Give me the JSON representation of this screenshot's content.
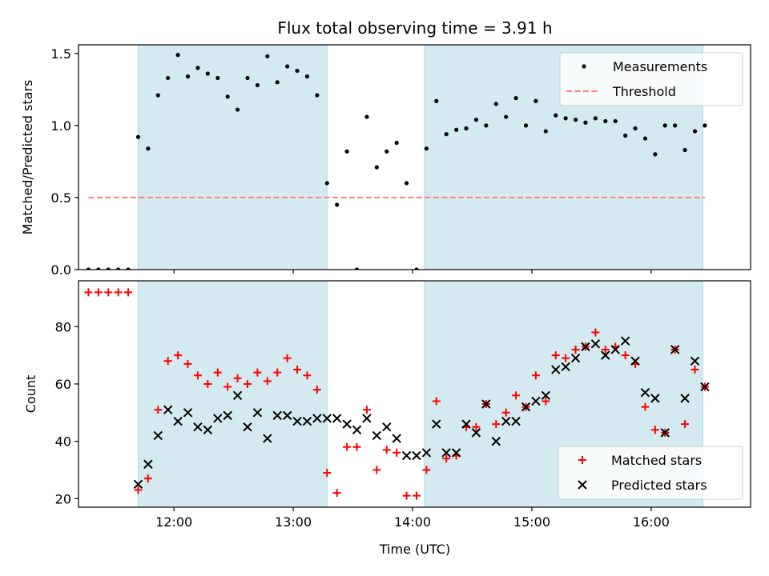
{
  "chart_data": [
    {
      "type": "scatter",
      "title": "Flux total observing time = 3.91 h",
      "xlabel": "",
      "ylabel": "Matched/Predicted stars",
      "xlim": [
        "11:12",
        "16:50"
      ],
      "ylim": [
        0,
        1.56
      ],
      "yticks": [
        0.0,
        0.5,
        1.0,
        1.5
      ],
      "ytick_labels": [
        "0.0",
        "0.5",
        "1.0",
        "1.5"
      ],
      "shaded_intervals": [
        [
          "11:42",
          "13:17"
        ],
        [
          "14:06",
          "16:26"
        ]
      ],
      "shade_color": "#d4eaf0",
      "legend_placement": "top-right",
      "series": [
        {
          "name": "Measurements",
          "marker": "dot",
          "color": "#000000",
          "x": [
            "11:17",
            "11:22",
            "11:27",
            "11:32",
            "11:37",
            "11:42",
            "11:47",
            "11:52",
            "11:57",
            "12:02",
            "12:07",
            "12:12",
            "12:17",
            "12:22",
            "12:27",
            "12:32",
            "12:37",
            "12:42",
            "12:47",
            "12:52",
            "12:57",
            "13:02",
            "13:07",
            "13:12",
            "13:17",
            "13:22",
            "13:27",
            "13:32",
            "13:37",
            "13:42",
            "13:47",
            "13:52",
            "13:57",
            "14:02",
            "14:07",
            "14:12",
            "14:17",
            "14:22",
            "14:27",
            "14:32",
            "14:37",
            "14:42",
            "14:47",
            "14:52",
            "14:57",
            "15:02",
            "15:07",
            "15:12",
            "15:17",
            "15:22",
            "15:27",
            "15:32",
            "15:37",
            "15:42",
            "15:47",
            "15:52",
            "15:57",
            "16:02",
            "16:07",
            "16:12",
            "16:17",
            "16:22",
            "16:27"
          ],
          "y": [
            0,
            0,
            0,
            0,
            0,
            0.92,
            0.84,
            1.21,
            1.33,
            1.49,
            1.34,
            1.4,
            1.36,
            1.33,
            1.2,
            1.11,
            1.33,
            1.28,
            1.48,
            1.3,
            1.41,
            1.38,
            1.34,
            1.21,
            0.6,
            0.45,
            0.82,
            0,
            1.06,
            0.71,
            0.82,
            0.88,
            0.6,
            0,
            0.84,
            1.17,
            0.94,
            0.97,
            0.98,
            1.04,
            1.0,
            1.15,
            1.06,
            1.19,
            1.0,
            1.17,
            0.96,
            1.07,
            1.05,
            1.04,
            1.02,
            1.05,
            1.03,
            1.03,
            0.93,
            0.98,
            0.91,
            0.8,
            1.0,
            1.0,
            0.83,
            0.96,
            1.0
          ]
        },
        {
          "name": "Threshold",
          "style": "dashed",
          "color": "#ff7f7f",
          "x": [
            "11:17",
            "16:27"
          ],
          "y": [
            0.5,
            0.5
          ]
        }
      ]
    },
    {
      "type": "scatter",
      "title": "",
      "xlabel": "Time (UTC)",
      "ylabel": "Count",
      "xlim": [
        "11:12",
        "16:50"
      ],
      "ylim": [
        17,
        96
      ],
      "yticks": [
        20,
        40,
        60,
        80
      ],
      "ytick_labels": [
        "20",
        "40",
        "60",
        "80"
      ],
      "xticks": [
        "12:00",
        "13:00",
        "14:00",
        "15:00",
        "16:00"
      ],
      "xtick_labels": [
        "12:00",
        "13:00",
        "14:00",
        "15:00",
        "16:00"
      ],
      "shaded_intervals": [
        [
          "11:42",
          "13:17"
        ],
        [
          "14:06",
          "16:26"
        ]
      ],
      "shade_color": "#d4eaf0",
      "legend_placement": "bottom-right",
      "series": [
        {
          "name": "Matched stars",
          "marker": "plus",
          "color": "#ff0000",
          "x": [
            "11:17",
            "11:22",
            "11:27",
            "11:32",
            "11:37",
            "11:42",
            "11:47",
            "11:52",
            "11:57",
            "12:02",
            "12:07",
            "12:12",
            "12:17",
            "12:22",
            "12:27",
            "12:32",
            "12:37",
            "12:42",
            "12:47",
            "12:52",
            "12:57",
            "13:02",
            "13:07",
            "13:12",
            "13:17",
            "13:22",
            "13:27",
            "13:32",
            "13:37",
            "13:42",
            "13:47",
            "13:52",
            "13:57",
            "14:02",
            "14:07",
            "14:12",
            "14:17",
            "14:22",
            "14:27",
            "14:32",
            "14:37",
            "14:42",
            "14:47",
            "14:52",
            "14:57",
            "15:02",
            "15:07",
            "15:12",
            "15:17",
            "15:22",
            "15:27",
            "15:32",
            "15:37",
            "15:42",
            "15:47",
            "15:52",
            "15:57",
            "16:02",
            "16:07",
            "16:12",
            "16:17",
            "16:22",
            "16:27"
          ],
          "y": [
            92,
            92,
            92,
            92,
            92,
            23,
            27,
            51,
            68,
            70,
            67,
            63,
            60,
            64,
            59,
            62,
            60,
            64,
            61,
            64,
            69,
            65,
            63,
            58,
            29,
            22,
            38,
            38,
            51,
            30,
            37,
            36,
            21,
            21,
            30,
            54,
            34,
            35,
            45,
            45,
            53,
            46,
            50,
            56,
            52,
            63,
            54,
            70,
            69,
            72,
            73,
            78,
            72,
            73,
            70,
            67,
            52,
            44,
            43,
            72,
            46,
            65,
            59
          ]
        },
        {
          "name": "Predicted stars",
          "marker": "x",
          "color": "#000000",
          "x": [
            "11:42",
            "11:47",
            "11:52",
            "11:57",
            "12:02",
            "12:07",
            "12:12",
            "12:17",
            "12:22",
            "12:27",
            "12:32",
            "12:37",
            "12:42",
            "12:47",
            "12:52",
            "12:57",
            "13:02",
            "13:07",
            "13:12",
            "13:17",
            "13:22",
            "13:27",
            "13:32",
            "13:37",
            "13:42",
            "13:47",
            "13:52",
            "13:57",
            "14:02",
            "14:07",
            "14:12",
            "14:17",
            "14:22",
            "14:27",
            "14:32",
            "14:37",
            "14:42",
            "14:47",
            "14:52",
            "14:57",
            "15:02",
            "15:07",
            "15:12",
            "15:17",
            "15:22",
            "15:27",
            "15:32",
            "15:37",
            "15:42",
            "15:47",
            "15:52",
            "15:57",
            "16:02",
            "16:07",
            "16:12",
            "16:17",
            "16:22",
            "16:27"
          ],
          "y": [
            25,
            32,
            42,
            51,
            47,
            50,
            45,
            44,
            48,
            49,
            56,
            45,
            50,
            41,
            49,
            49,
            47,
            47,
            48,
            48,
            48,
            46,
            44,
            48,
            42,
            45,
            41,
            35,
            35,
            36,
            46,
            36,
            36,
            46,
            43,
            53,
            40,
            47,
            47,
            52,
            54,
            56,
            65,
            66,
            69,
            73,
            74,
            70,
            72,
            75,
            68,
            57,
            55,
            43,
            72,
            55,
            68,
            59
          ]
        }
      ]
    }
  ]
}
